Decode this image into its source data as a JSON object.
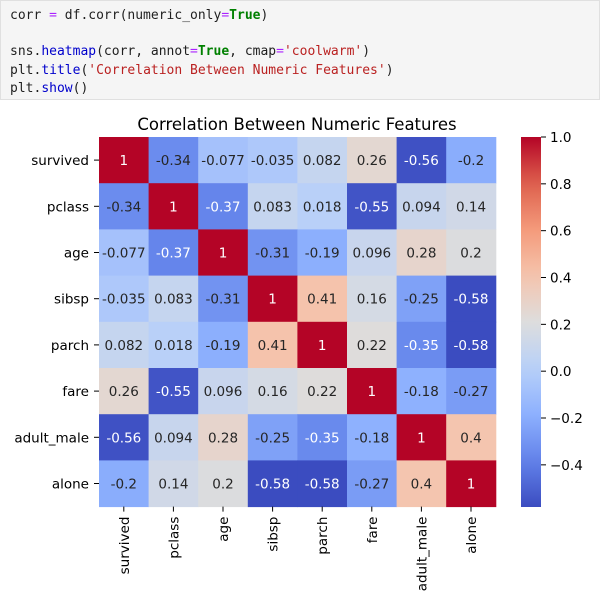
{
  "code_cell": {
    "lines": [
      [
        {
          "t": "corr "
        },
        {
          "t": "=",
          "c": "op"
        },
        {
          "t": " df.corr(numeric_only"
        },
        {
          "t": "=",
          "c": "op"
        },
        {
          "t": "True",
          "c": "kw"
        },
        {
          "t": ")"
        }
      ],
      [],
      [
        {
          "t": "sns."
        },
        {
          "t": "heatmap",
          "c": "fn2"
        },
        {
          "t": "(corr, annot"
        },
        {
          "t": "=",
          "c": "op"
        },
        {
          "t": "True",
          "c": "kw"
        },
        {
          "t": ", cmap"
        },
        {
          "t": "=",
          "c": "op"
        },
        {
          "t": "'coolwarm'",
          "c": "str"
        },
        {
          "t": ")"
        }
      ],
      [
        {
          "t": "plt."
        },
        {
          "t": "title",
          "c": "fn2"
        },
        {
          "t": "("
        },
        {
          "t": "'Correlation Between Numeric Features'",
          "c": "str"
        },
        {
          "t": ")"
        }
      ],
      [
        {
          "t": "plt."
        },
        {
          "t": "show",
          "c": "fn2"
        },
        {
          "t": "()"
        }
      ]
    ]
  },
  "chart_data": {
    "type": "heatmap",
    "title": "Correlation Between Numeric Features",
    "rows": [
      "survived",
      "pclass",
      "age",
      "sibsp",
      "parch",
      "fare",
      "adult_male",
      "alone"
    ],
    "cols": [
      "survived",
      "pclass",
      "age",
      "sibsp",
      "parch",
      "fare",
      "adult_male",
      "alone"
    ],
    "values": [
      [
        1,
        -0.34,
        -0.077,
        -0.035,
        0.082,
        0.26,
        -0.56,
        -0.2
      ],
      [
        -0.34,
        1,
        -0.37,
        0.083,
        0.018,
        -0.55,
        0.094,
        0.14
      ],
      [
        -0.077,
        -0.37,
        1,
        -0.31,
        -0.19,
        0.096,
        0.28,
        0.2
      ],
      [
        -0.035,
        0.083,
        -0.31,
        1,
        0.41,
        0.16,
        -0.25,
        -0.58
      ],
      [
        0.082,
        0.018,
        -0.19,
        0.41,
        1,
        0.22,
        -0.35,
        -0.58
      ],
      [
        0.26,
        -0.55,
        0.096,
        0.16,
        0.22,
        1,
        -0.18,
        -0.27
      ],
      [
        -0.56,
        0.094,
        0.28,
        -0.25,
        -0.35,
        -0.18,
        1,
        0.4
      ],
      [
        -0.2,
        0.14,
        0.2,
        -0.58,
        -0.58,
        -0.27,
        0.4,
        1
      ]
    ],
    "cmap": "coolwarm",
    "vmin": -0.58,
    "vmax": 1.0,
    "colorbar_ticks": [
      "1.0",
      "0.8",
      "0.6",
      "0.4",
      "0.2",
      "0.0",
      "−0.2",
      "−0.4"
    ],
    "colorbar_tick_values": [
      1.0,
      0.8,
      0.6,
      0.4,
      0.2,
      0.0,
      -0.2,
      -0.4
    ]
  }
}
